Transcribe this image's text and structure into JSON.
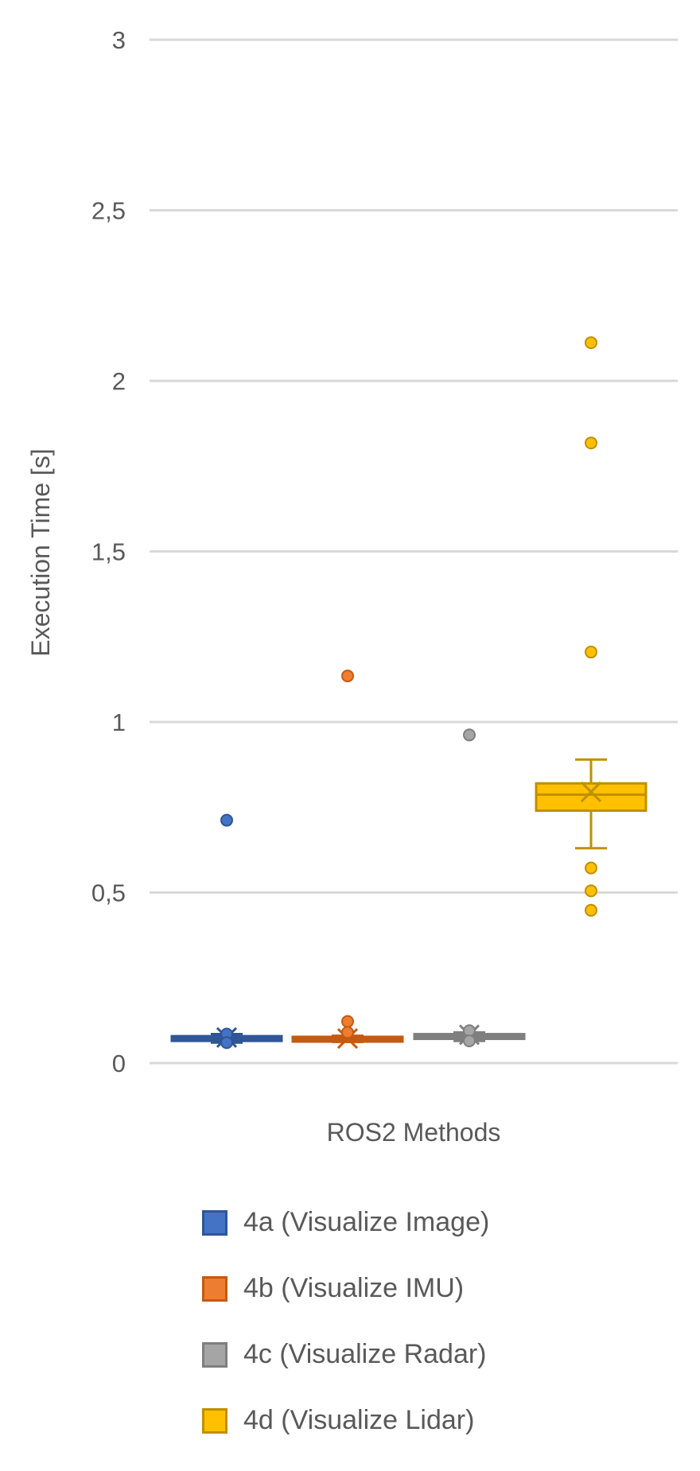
{
  "chart_data": {
    "type": "box",
    "xlabel": "ROS2 Methods",
    "ylabel": "Execution Time [s]",
    "ylim": [
      0,
      3
    ],
    "yticks": [
      {
        "value": 0,
        "label": "0"
      },
      {
        "value": 0.5,
        "label": "0,5"
      },
      {
        "value": 1,
        "label": "1"
      },
      {
        "value": 1.5,
        "label": "1,5"
      },
      {
        "value": 2,
        "label": "2"
      },
      {
        "value": 2.5,
        "label": "2,5"
      },
      {
        "value": 3,
        "label": "3"
      }
    ],
    "grid": true,
    "legend_position": "bottom",
    "series": [
      {
        "name": "4a (Visualize Image)",
        "color": "#4472C4",
        "edge": "#2F5597",
        "min": 0.06,
        "q1": 0.068,
        "median": 0.072,
        "q3": 0.076,
        "max": 0.085,
        "mean": 0.075,
        "outliers": [
          0.712,
          0.085,
          0.06
        ]
      },
      {
        "name": "4b (Visualize IMU)",
        "color": "#ED7D31",
        "edge": "#C55A11",
        "min": 0.062,
        "q1": 0.066,
        "median": 0.07,
        "q3": 0.074,
        "max": 0.08,
        "mean": 0.072,
        "outliers": [
          1.135,
          0.122,
          0.09
        ]
      },
      {
        "name": "4c (Visualize Radar)",
        "color": "#A5A5A5",
        "edge": "#7F7F7F",
        "min": 0.065,
        "q1": 0.074,
        "median": 0.078,
        "q3": 0.082,
        "max": 0.09,
        "mean": 0.083,
        "outliers": [
          0.962,
          0.095,
          0.065
        ]
      },
      {
        "name": "4d (Visualize Lidar)",
        "color": "#FFC000",
        "edge": "#BF9000",
        "min": 0.63,
        "q1": 0.74,
        "median": 0.787,
        "q3": 0.82,
        "max": 0.89,
        "mean": 0.795,
        "outliers": [
          2.112,
          1.818,
          1.205,
          0.572,
          0.505,
          0.448
        ]
      }
    ]
  }
}
